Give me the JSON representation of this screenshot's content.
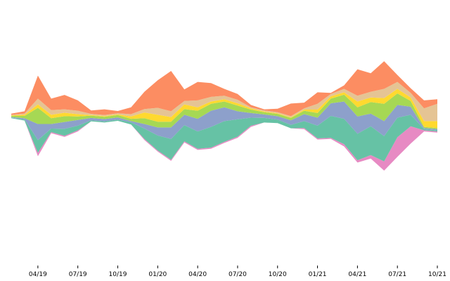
{
  "chart_data": {
    "type": "area",
    "layout": "streamgraph",
    "x": [
      "2019-02",
      "2019-03",
      "2019-04",
      "2019-05",
      "2019-06",
      "2019-07",
      "2019-08",
      "2019-09",
      "2019-10",
      "2019-11",
      "2019-12",
      "2020-01",
      "2020-02",
      "2020-03",
      "2020-04",
      "2020-05",
      "2020-06",
      "2020-07",
      "2020-08",
      "2020-09",
      "2020-10",
      "2020-11",
      "2020-12",
      "2021-01",
      "2021-02",
      "2021-03",
      "2021-04",
      "2021-05",
      "2021-06",
      "2021-07",
      "2021-08",
      "2021-09",
      "2021-10"
    ],
    "series": [
      {
        "color": "#fc8d62",
        "values": [
          2,
          4,
          40,
          20,
          25,
          18,
          6,
          10,
          4,
          12,
          30,
          48,
          70,
          20,
          32,
          24,
          12,
          10,
          4,
          2,
          6,
          22,
          10,
          20,
          2,
          6,
          46,
          32,
          48,
          12,
          8,
          14,
          8
        ]
      },
      {
        "color": "#e5c494",
        "values": [
          1,
          2,
          10,
          8,
          6,
          6,
          2,
          2,
          2,
          4,
          6,
          12,
          10,
          6,
          12,
          8,
          6,
          6,
          2,
          2,
          2,
          2,
          2,
          10,
          4,
          6,
          10,
          10,
          16,
          12,
          8,
          22,
          30
        ]
      },
      {
        "color": "#ffd92f",
        "values": [
          1,
          2,
          6,
          6,
          6,
          4,
          1,
          1,
          1,
          4,
          10,
          12,
          8,
          8,
          6,
          4,
          4,
          4,
          2,
          1,
          1,
          1,
          2,
          6,
          4,
          4,
          10,
          8,
          10,
          8,
          6,
          10,
          12
        ]
      },
      {
        "color": "#a6d854",
        "values": [
          2,
          4,
          28,
          10,
          10,
          6,
          4,
          4,
          4,
          4,
          10,
          10,
          10,
          10,
          14,
          12,
          10,
          10,
          6,
          4,
          4,
          4,
          6,
          8,
          8,
          12,
          16,
          20,
          30,
          20,
          10,
          2,
          2
        ]
      },
      {
        "color": "#8da0cb",
        "values": [
          1,
          2,
          28,
          8,
          12,
          10,
          4,
          4,
          4,
          2,
          8,
          14,
          20,
          18,
          22,
          28,
          24,
          14,
          8,
          6,
          6,
          8,
          12,
          14,
          22,
          30,
          30,
          22,
          26,
          22,
          14,
          2,
          2
        ]
      },
      {
        "color": "#66c2a5",
        "values": [
          1,
          2,
          22,
          6,
          12,
          8,
          2,
          2,
          2,
          4,
          18,
          26,
          36,
          28,
          30,
          36,
          36,
          30,
          14,
          8,
          6,
          6,
          12,
          22,
          38,
          44,
          46,
          50,
          44,
          34,
          20,
          2,
          2
        ]
      },
      {
        "color": "#e78ac3",
        "values": [
          0,
          0,
          6,
          2,
          2,
          2,
          0,
          0,
          0,
          0,
          2,
          2,
          2,
          2,
          2,
          2,
          2,
          2,
          2,
          0,
          0,
          0,
          2,
          2,
          2,
          4,
          4,
          6,
          16,
          34,
          30,
          2,
          2
        ]
      }
    ],
    "xticks": [
      "04/19",
      "07/19",
      "10/19",
      "01/20",
      "04/20",
      "07/20",
      "10/20",
      "01/21",
      "04/21",
      "07/21",
      "10/21"
    ],
    "xtick_dates": [
      "2019-04",
      "2019-07",
      "2019-10",
      "2020-01",
      "2020-04",
      "2020-07",
      "2020-10",
      "2021-01",
      "2021-04",
      "2021-07",
      "2021-10"
    ],
    "title": "",
    "xlabel": "",
    "ylabel": "",
    "grid": false,
    "legend": "none"
  }
}
